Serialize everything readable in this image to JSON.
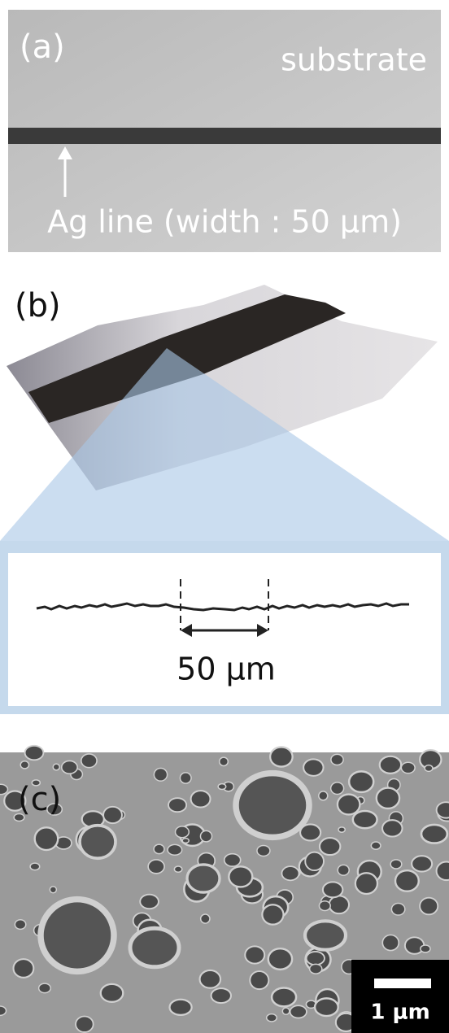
{
  "panels": [
    {
      "label": "(a)",
      "texts": [
        "substrate",
        "Ag line (width : 50 μm)"
      ]
    },
    {
      "label": "(b)",
      "profile_label": "50 μm"
    },
    {
      "label": "(c)",
      "scale_bar": "1 μm"
    }
  ]
}
